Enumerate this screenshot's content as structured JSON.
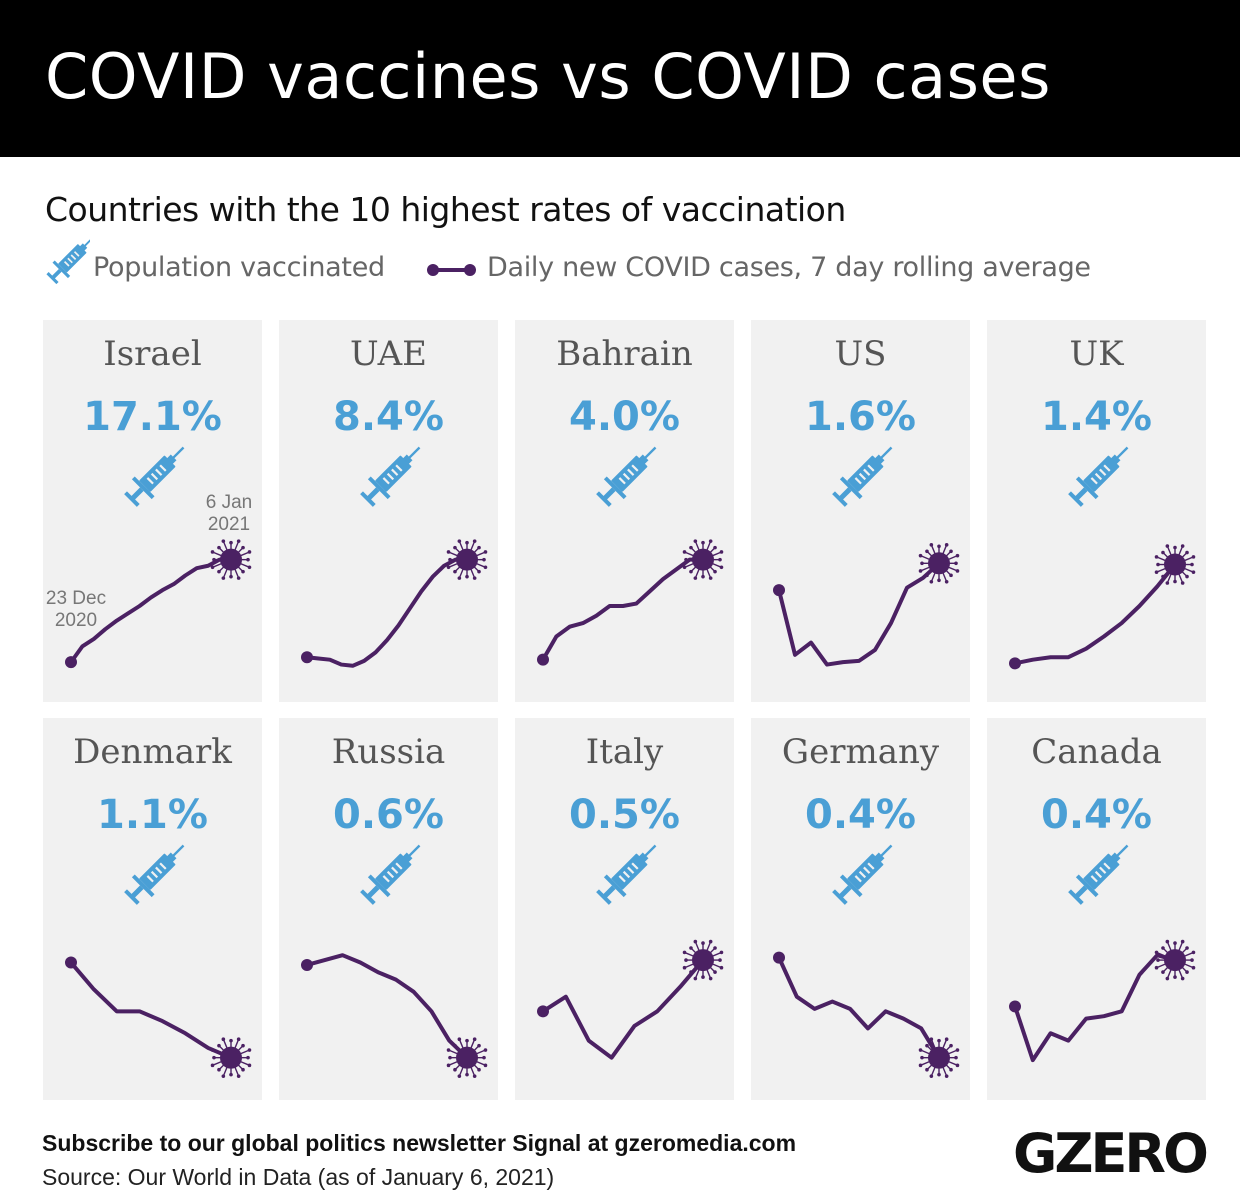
{
  "header": {
    "title": "COVID vaccines vs COVID cases"
  },
  "subtitle": "Countries with the 10 highest rates of vaccination",
  "legend": {
    "vaccinated_label": "Population vaccinated",
    "cases_label": "Daily new COVID cases, 7 day rolling average"
  },
  "colors": {
    "vaccine": "#4a9fd5",
    "cases": "#4b2163",
    "panel": "#f1f1f1"
  },
  "date_labels": {
    "start": "23 Dec\n2020",
    "end": "6 Jan\n2021"
  },
  "chart_data": {
    "type": "line",
    "title": "COVID vaccines vs COVID cases",
    "x_range": [
      "23 Dec 2020",
      "6 Jan 2021"
    ],
    "y_units": "relative daily new cases (normalized 0-100 per country)",
    "panels": [
      {
        "country": "Israel",
        "vaccinated": "17.1%",
        "values": [
          4,
          17,
          23,
          31,
          38,
          44,
          50,
          57,
          63,
          68,
          75,
          81,
          83,
          88,
          88
        ]
      },
      {
        "country": "UAE",
        "vaccinated": "8.4%",
        "values": [
          8,
          7,
          6,
          2,
          1,
          5,
          12,
          22,
          34,
          48,
          62,
          74,
          83,
          88,
          88
        ]
      },
      {
        "country": "Bahrain",
        "vaccinated": "4.0%",
        "values": [
          6,
          25,
          33,
          36,
          42,
          50,
          50,
          52,
          62,
          72,
          80,
          88,
          88
        ]
      },
      {
        "country": "US",
        "vaccinated": "1.6%",
        "values": [
          63,
          10,
          20,
          2,
          4,
          5,
          14,
          36,
          65,
          73,
          85
        ]
      },
      {
        "country": "UK",
        "vaccinated": "1.4%",
        "values": [
          3,
          6,
          8,
          8,
          15,
          25,
          36,
          50,
          66,
          84
        ]
      },
      {
        "country": "Denmark",
        "vaccinated": "1.1%",
        "values": [
          84,
          62,
          44,
          44,
          36,
          26,
          14,
          6
        ]
      },
      {
        "country": "Russia",
        "vaccinated": "0.6%",
        "values": [
          82,
          86,
          90,
          84,
          76,
          70,
          60,
          44,
          20,
          6
        ]
      },
      {
        "country": "Italy",
        "vaccinated": "0.5%",
        "values": [
          44,
          56,
          20,
          6,
          32,
          44,
          64,
          86
        ]
      },
      {
        "country": "Germany",
        "vaccinated": "0.4%",
        "values": [
          88,
          56,
          46,
          52,
          46,
          30,
          44,
          38,
          30,
          6
        ]
      },
      {
        "country": "Canada",
        "vaccinated": "0.4%",
        "values": [
          48,
          4,
          26,
          20,
          38,
          40,
          44,
          74,
          90,
          86
        ]
      }
    ]
  },
  "footer": {
    "subscribe": "Subscribe to our global politics newsletter Signal at gzeromedia.com",
    "source": "Source: Our World in Data (as of January 6, 2021)",
    "logo": "GZERO"
  }
}
